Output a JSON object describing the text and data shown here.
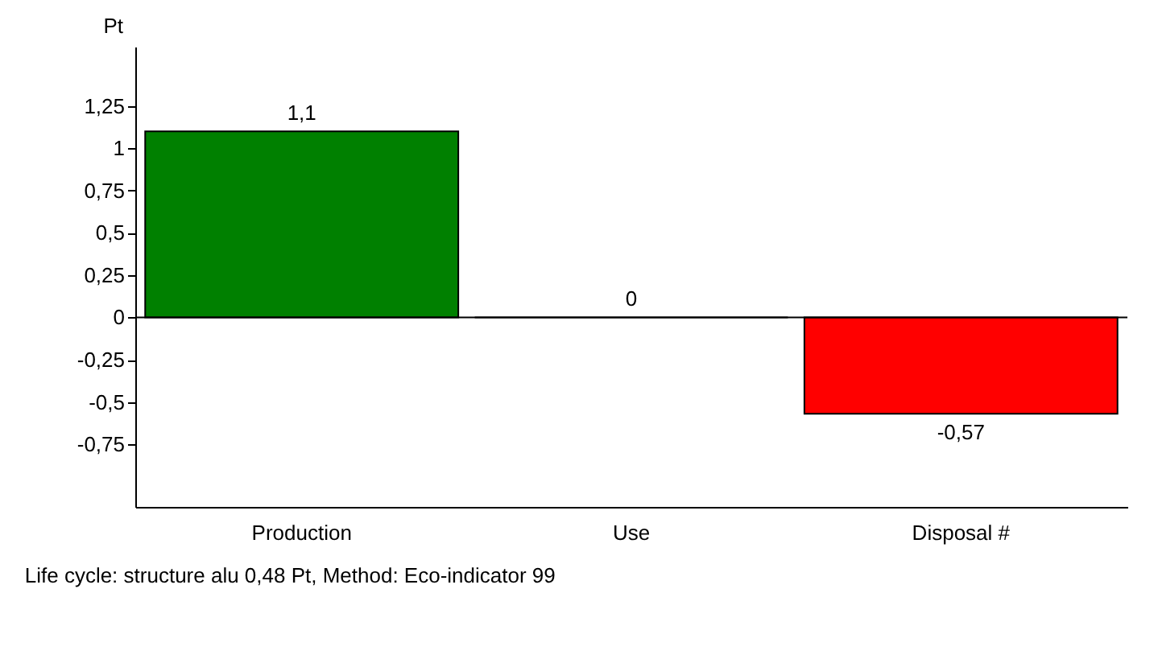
{
  "chart_data": {
    "type": "bar",
    "ylabel": "Pt",
    "categories": [
      "Production",
      "Use",
      "Disposal #"
    ],
    "values": [
      1.1,
      0,
      -0.57
    ],
    "colors": [
      "#008000",
      "#000000",
      "#ff0000"
    ],
    "value_labels": [
      "1,1",
      "0",
      "-0,57"
    ],
    "ylim": [
      -1.12,
      1.6
    ],
    "yticks": [
      {
        "value": -0.75,
        "label": "-0,75"
      },
      {
        "value": -0.5,
        "label": "-0,5"
      },
      {
        "value": -0.25,
        "label": "-0,25"
      },
      0,
      {
        "value": 0.25,
        "label": "0,25"
      },
      {
        "value": 0.5,
        "label": "0,5"
      },
      {
        "value": 0.75,
        "label": "0,75"
      },
      1,
      {
        "value": 1.25,
        "label": "1,25"
      }
    ],
    "ref_lines": [
      {
        "axis": "y",
        "value": 0,
        "color": "#000000"
      }
    ],
    "grid": false,
    "annotations": [
      "Life cycle:  structure alu  0,48 Pt,  Method: Eco-indicator 99"
    ]
  }
}
